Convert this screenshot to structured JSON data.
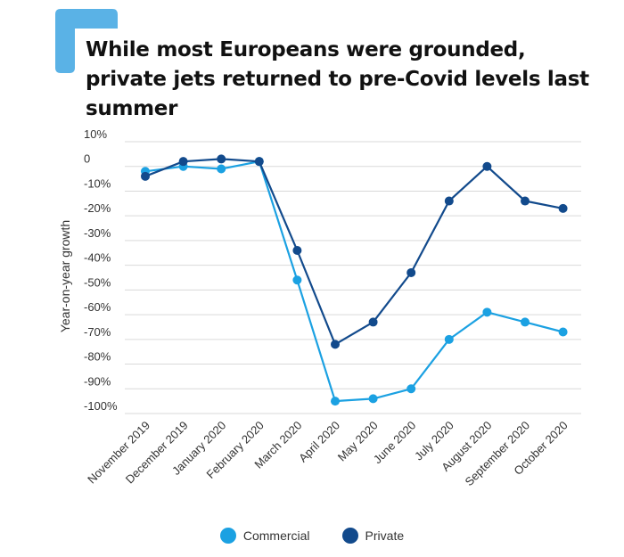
{
  "title": "While most Europeans were grounded, private jets returned to pre-Covid levels last summer",
  "colors": {
    "accent": "#5AB2E6",
    "commercial": "#1BA1E2",
    "private": "#124A8C",
    "grid": "#D9D9D9",
    "text": "#333333"
  },
  "chart_data": {
    "type": "line",
    "title": "While most Europeans were grounded, private jets returned to pre-Covid levels last summer",
    "xlabel": "",
    "ylabel": "Year-on-year growth",
    "ylim": [
      -100,
      10
    ],
    "yticks": [
      10,
      0,
      -10,
      -20,
      -30,
      -40,
      -50,
      -60,
      -70,
      -80,
      -90,
      -100
    ],
    "ytick_labels": [
      "10%",
      "0",
      "-10%",
      "-20%",
      "-30%",
      "-40%",
      "-50%",
      "-60%",
      "-70%",
      "-80%",
      "-90%",
      "-100%"
    ],
    "grid": true,
    "legend_position": "bottom-center",
    "categories": [
      "November 2019",
      "December 2019",
      "January 2020",
      "February 2020",
      "March 2020",
      "April 2020",
      "May 2020",
      "June 2020",
      "July 2020",
      "August 2020",
      "September 2020",
      "October 2020"
    ],
    "series": [
      {
        "name": "Commercial",
        "color": "#1BA1E2",
        "values": [
          -2,
          0,
          -1,
          2,
          -46,
          -95,
          -94,
          -90,
          -70,
          -59,
          -63,
          -67
        ]
      },
      {
        "name": "Private",
        "color": "#124A8C",
        "values": [
          -4,
          2,
          3,
          2,
          -34,
          -72,
          -63,
          -43,
          -14,
          0,
          -14,
          -17
        ]
      }
    ]
  }
}
